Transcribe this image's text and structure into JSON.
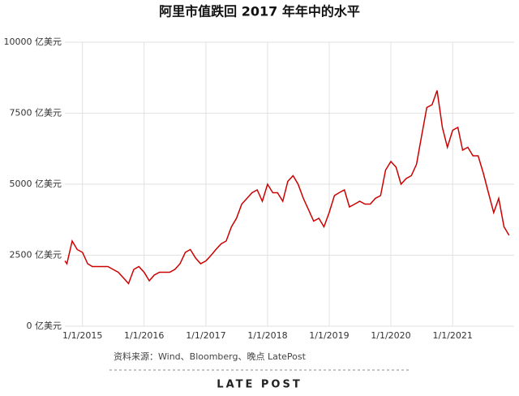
{
  "chart_data": {
    "type": "line",
    "title": "阿里市值跌回 2017 年年中的水平",
    "source": "资料来源：Wind、Bloomberg、晚点 LatePost",
    "brand": "LATE POST",
    "xlim": [
      "9/19/2014",
      "12/31/2021"
    ],
    "xticks": [
      "1/1/2015",
      "1/1/2016",
      "1/1/2017",
      "1/1/2018",
      "1/1/2019",
      "1/1/2020",
      "1/1/2021"
    ],
    "ylim": [
      0,
      10000
    ],
    "yticks": [
      {
        "value": 0,
        "label": "0 亿美元"
      },
      {
        "value": 2500,
        "label": "2500 亿美元"
      },
      {
        "value": 5000,
        "label": "5000 亿美元"
      },
      {
        "value": 7500,
        "label": "7500 亿美元"
      },
      {
        "value": 10000,
        "label": "10000 亿美元"
      }
    ],
    "grid": true,
    "x": [
      "9/19/2014",
      "10/1/2014",
      "11/1/2014",
      "12/1/2014",
      "1/1/2015",
      "2/1/2015",
      "3/1/2015",
      "4/1/2015",
      "5/1/2015",
      "6/1/2015",
      "7/1/2015",
      "8/1/2015",
      "9/1/2015",
      "10/1/2015",
      "11/1/2015",
      "12/1/2015",
      "1/1/2016",
      "2/1/2016",
      "3/1/2016",
      "4/1/2016",
      "5/1/2016",
      "6/1/2016",
      "7/1/2016",
      "8/1/2016",
      "9/1/2016",
      "10/1/2016",
      "11/1/2016",
      "12/1/2016",
      "1/1/2017",
      "2/1/2017",
      "3/1/2017",
      "4/1/2017",
      "5/1/2017",
      "6/1/2017",
      "7/1/2017",
      "8/1/2017",
      "9/1/2017",
      "10/1/2017",
      "11/1/2017",
      "12/1/2017",
      "1/1/2018",
      "2/1/2018",
      "3/1/2018",
      "4/1/2018",
      "5/1/2018",
      "6/1/2018",
      "7/1/2018",
      "8/1/2018",
      "9/1/2018",
      "10/1/2018",
      "11/1/2018",
      "12/1/2018",
      "1/1/2019",
      "2/1/2019",
      "3/1/2019",
      "4/1/2019",
      "5/1/2019",
      "6/1/2019",
      "7/1/2019",
      "8/1/2019",
      "9/1/2019",
      "10/1/2019",
      "11/1/2019",
      "12/1/2019",
      "1/1/2020",
      "2/1/2020",
      "3/1/2020",
      "4/1/2020",
      "5/1/2020",
      "6/1/2020",
      "7/1/2020",
      "8/1/2020",
      "9/1/2020",
      "10/1/2020",
      "11/1/2020",
      "12/1/2020",
      "1/1/2021",
      "2/1/2021",
      "3/1/2021",
      "4/1/2021",
      "5/1/2021",
      "6/1/2021",
      "7/1/2021",
      "8/1/2021",
      "9/1/2021",
      "10/1/2021",
      "11/1/2021",
      "12/1/2021"
    ],
    "series": [
      {
        "color": "#cc0000",
        "values": [
          2300,
          2200,
          3000,
          2700,
          2600,
          2200,
          2100,
          2100,
          2100,
          2100,
          2000,
          1900,
          1700,
          1500,
          2000,
          2100,
          1900,
          1600,
          1800,
          1900,
          1900,
          1900,
          2000,
          2200,
          2600,
          2700,
          2400,
          2200,
          2300,
          2500,
          2700,
          2900,
          3000,
          3500,
          3800,
          4300,
          4500,
          4700,
          4800,
          4400,
          5000,
          4700,
          4700,
          4400,
          5100,
          5300,
          5000,
          4500,
          4100,
          3700,
          3800,
          3500,
          4000,
          4600,
          4700,
          4800,
          4200,
          4300,
          4400,
          4300,
          4300,
          4500,
          4600,
          5500,
          5800,
          5600,
          5000,
          5200,
          5300,
          5700,
          6700,
          7700,
          7800,
          8300,
          7000,
          6300,
          6900,
          7000,
          6200,
          6300,
          6000,
          6000,
          5400,
          4700,
          4000,
          4500,
          3500,
          3200
        ]
      }
    ]
  }
}
